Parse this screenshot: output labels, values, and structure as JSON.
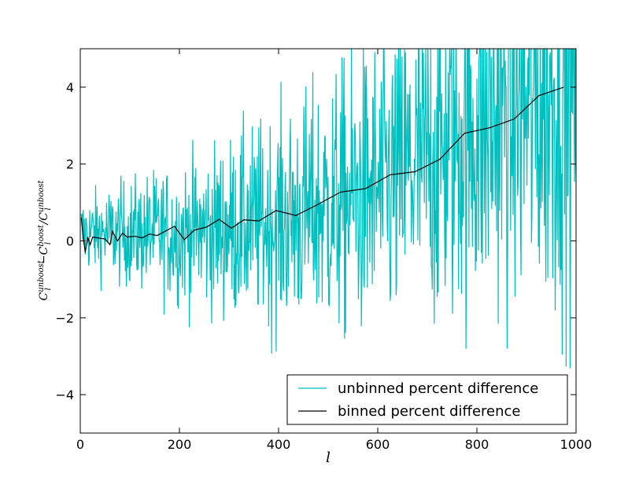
{
  "chart_data": {
    "type": "line",
    "xlabel": "l",
    "ylabel": {
      "t1": "C",
      "t1_sup": "unboost",
      "t1_sub": "l",
      "minus": "−",
      "t2": "C",
      "t2_sup": "boost",
      "t2_sub": "l",
      "slash": " /",
      "t3": "C",
      "t3_sup": "unboost",
      "t3_sub": "l"
    },
    "xlim": [
      0,
      1000
    ],
    "ylim": [
      -5,
      5
    ],
    "xticks": [
      0,
      200,
      400,
      600,
      800,
      1000
    ],
    "yticks": [
      -4,
      -2,
      0,
      2,
      4
    ],
    "xtick_labels": [
      "0",
      "200",
      "400",
      "600",
      "800",
      "1000"
    ],
    "ytick_labels": [
      "−4",
      "−2",
      "0",
      "2",
      "4"
    ],
    "grid": false,
    "legend_position": "lower-right",
    "series": [
      {
        "name": "unbinned percent difference",
        "color": "#00bfbf",
        "style": "noisy",
        "x_range": [
          2,
          1000
        ],
        "trend_x": [
          2,
          200,
          400,
          600,
          800,
          1000
        ],
        "trend_y": [
          0.2,
          0.2,
          0.5,
          1.3,
          2.9,
          4.0
        ],
        "spread_x": [
          2,
          200,
          400,
          600,
          800,
          1000
        ],
        "spread_y": [
          0.7,
          1.3,
          2.0,
          2.8,
          3.5,
          4.2
        ]
      },
      {
        "name": "binned percent difference",
        "color": "#000000",
        "style": "solid",
        "x": [
          2,
          5,
          10,
          15,
          20,
          25,
          50,
          60,
          65,
          75,
          85,
          95,
          110,
          125,
          140,
          155,
          190,
          210,
          230,
          255,
          280,
          305,
          330,
          360,
          395,
          435,
          475,
          525,
          575,
          625,
          675,
          725,
          775,
          825,
          875,
          925,
          975
        ],
        "y": [
          0.6,
          0.2,
          -0.3,
          0.1,
          -0.1,
          0.1,
          0.05,
          -0.1,
          0.25,
          0.0,
          0.2,
          0.1,
          0.12,
          0.08,
          0.18,
          0.14,
          0.38,
          0.03,
          0.28,
          0.36,
          0.56,
          0.33,
          0.55,
          0.52,
          0.79,
          0.66,
          0.92,
          1.27,
          1.36,
          1.72,
          1.8,
          2.12,
          2.8,
          2.94,
          3.17,
          3.78,
          4.0
        ]
      }
    ]
  }
}
